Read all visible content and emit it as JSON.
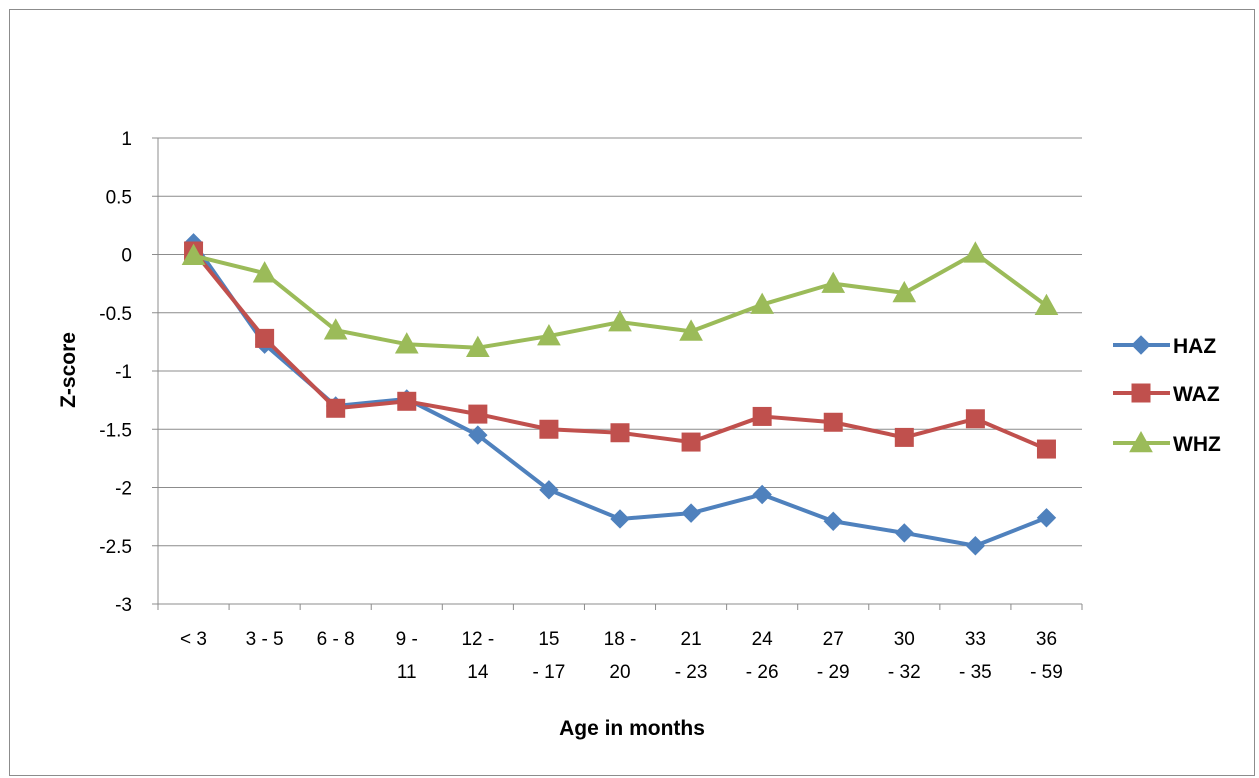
{
  "chart_data": {
    "type": "line",
    "title": "",
    "xlabel": "Age in months",
    "ylabel": "Z-score",
    "ylim": [
      -3,
      1
    ],
    "yticks": [
      1,
      0.5,
      0,
      -0.5,
      -1,
      -1.5,
      -2,
      -2.5,
      -3
    ],
    "grid": true,
    "legend_position": "right",
    "categories": [
      "< 3",
      "3 - 5",
      "6 - 8",
      "9 - 11",
      "12 - 14",
      "15 - 17",
      "18 - 20",
      "21 - 23",
      "24 - 26",
      "27 - 29",
      "30 - 32",
      "33 - 35",
      "36 - 59"
    ],
    "category_lines": [
      [
        "< 3"
      ],
      [
        "3 - 5"
      ],
      [
        "6 - 8"
      ],
      [
        "9 -",
        "11"
      ],
      [
        "12 -",
        "14"
      ],
      [
        "15",
        "- 17"
      ],
      [
        "18 -",
        "20"
      ],
      [
        "21",
        "- 23"
      ],
      [
        "24",
        "- 26"
      ],
      [
        "27",
        "- 29"
      ],
      [
        "30",
        "- 32"
      ],
      [
        "33",
        "- 35"
      ],
      [
        "36",
        "- 59"
      ]
    ],
    "series": [
      {
        "name": "HAZ",
        "color": "#4f81bd",
        "marker": "diamond",
        "values": [
          0.1,
          -0.77,
          -1.3,
          -1.24,
          -1.55,
          -2.02,
          -2.27,
          -2.22,
          -2.06,
          -2.29,
          -2.39,
          -2.5,
          -2.26
        ]
      },
      {
        "name": "WAZ",
        "color": "#c0504d",
        "marker": "square",
        "values": [
          0.03,
          -0.72,
          -1.32,
          -1.26,
          -1.37,
          -1.5,
          -1.53,
          -1.61,
          -1.39,
          -1.44,
          -1.57,
          -1.41,
          -1.67
        ]
      },
      {
        "name": "WHZ",
        "color": "#9bbb59",
        "marker": "triangle",
        "values": [
          -0.01,
          -0.16,
          -0.65,
          -0.77,
          -0.8,
          -0.7,
          -0.58,
          -0.66,
          -0.43,
          -0.25,
          -0.33,
          0.01,
          -0.44
        ]
      }
    ]
  }
}
